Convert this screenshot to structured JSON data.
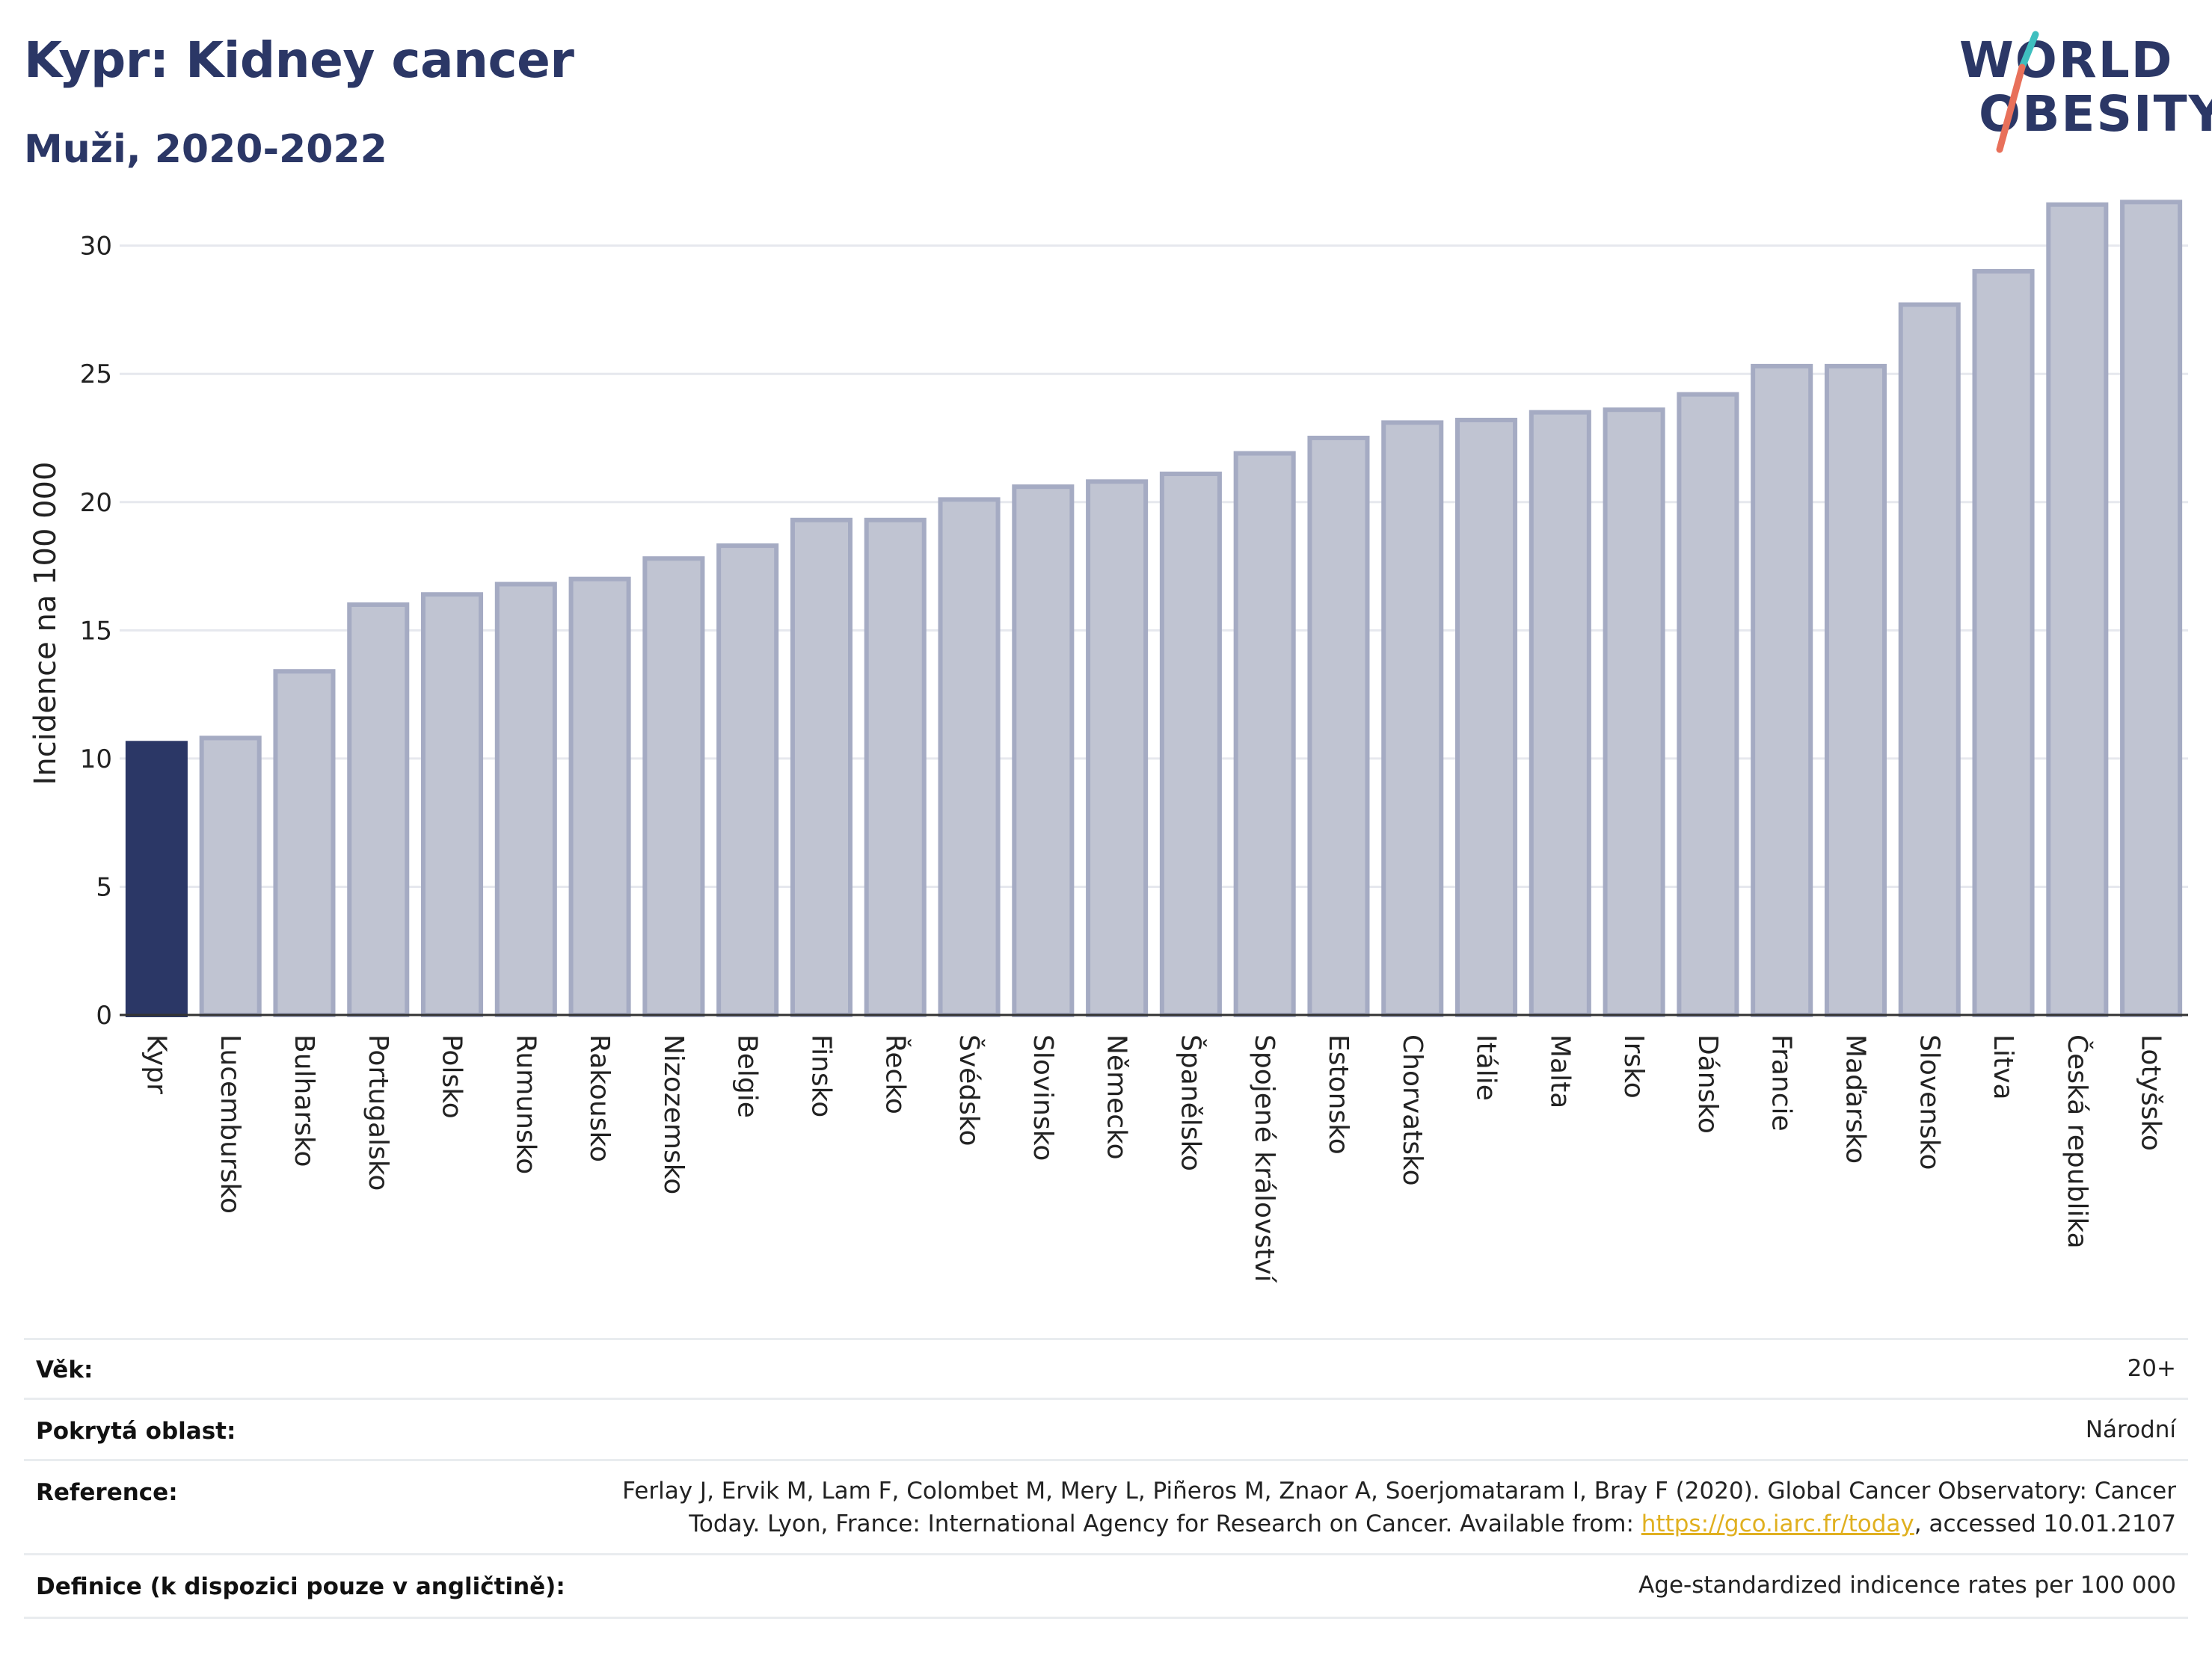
{
  "title": "Kypr: Kidney cancer",
  "subtitle": "Muži, 2020-2022",
  "logo": {
    "line1": "WORLD",
    "line2": "OBESITY"
  },
  "colors": {
    "highlight": "#2b3766",
    "bar": "#c0c4d2",
    "bar_stroke": "#a5abc3",
    "title": "#2b3766",
    "link": "#e0b020",
    "logo_accent_teal": "#3fbfbf",
    "logo_accent_coral": "#e8705a"
  },
  "chart_data": {
    "type": "bar",
    "ylabel": "Incidence na 100 000",
    "xlabel": "",
    "ylim": [
      0,
      32
    ],
    "yticks": [
      0,
      5,
      10,
      15,
      20,
      25,
      30
    ],
    "grid": true,
    "highlight": "Kypr",
    "categories": [
      "Kypr",
      "Lucembursko",
      "Bulharsko",
      "Portugalsko",
      "Polsko",
      "Rumunsko",
      "Rakousko",
      "Nizozemsko",
      "Belgie",
      "Finsko",
      "Řecko",
      "Švédsko",
      "Slovinsko",
      "Německo",
      "Španělsko",
      "Spojené království",
      "Estonsko",
      "Chorvatsko",
      "Itálie",
      "Malta",
      "Irsko",
      "Dánsko",
      "Francie",
      "Maďarsko",
      "Slovensko",
      "Litva",
      "Česká republika",
      "Lotyšsko"
    ],
    "values": [
      10.6,
      10.8,
      13.4,
      16.0,
      16.4,
      16.8,
      17.0,
      17.8,
      18.3,
      19.3,
      19.3,
      20.1,
      20.6,
      20.8,
      21.1,
      21.9,
      22.5,
      23.1,
      23.2,
      23.5,
      23.6,
      24.2,
      25.3,
      25.3,
      27.7,
      29.0,
      31.6,
      31.7
    ]
  },
  "meta": {
    "age": {
      "label": "Věk:",
      "value": "20+"
    },
    "area": {
      "label": "Pokrytá oblast:",
      "value": "Národní"
    },
    "reference": {
      "label": "Reference:",
      "line1": "Ferlay J, Ervik M, Lam F, Colombet M, Mery L, Piñeros M, Znaor A, Soerjomataram I, Bray F (2020). Global Cancer Observatory: Cancer",
      "line2_pre": "Today. Lyon, France: International Agency for Research on Cancer. Available from: ",
      "link": "https://gco.iarc.fr/today",
      "line2_post": ", accessed 10.01.2107"
    },
    "definition": {
      "label": "Definice (k dispozici pouze v angličtině):",
      "value": "Age-standardized indicence rates per 100 000"
    }
  }
}
